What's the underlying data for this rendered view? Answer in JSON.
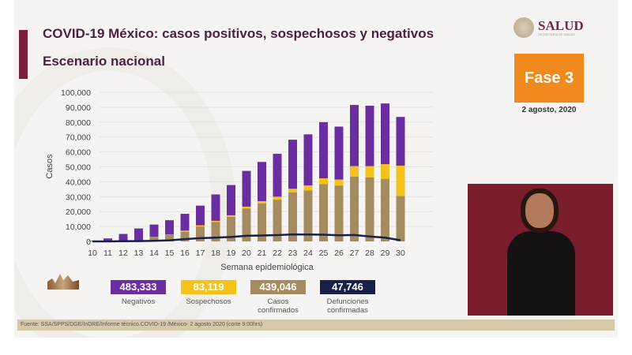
{
  "header": {
    "title": "COVID-19 México: casos positivos, sospechosos y negativos",
    "subtitle": "Escenario nacional"
  },
  "logo": {
    "name": "SALUD",
    "sub": "SECRETARÍA DE SALUD"
  },
  "phase": {
    "label": "Fase 3",
    "color": "#f08a1c"
  },
  "date": "2 agosto, 2020",
  "chart_data": {
    "type": "bar",
    "stacked": true,
    "xlabel": "Semana epidemiológica",
    "ylabel": "Casos",
    "ylim": [
      0,
      100000
    ],
    "yticks": [
      "0",
      "10,000",
      "20,000",
      "30,000",
      "40,000",
      "50,000",
      "60,000",
      "70,000",
      "80,000",
      "90,000",
      "100,000"
    ],
    "grid": true,
    "categories": [
      "10",
      "11",
      "12",
      "13",
      "14",
      "15",
      "16",
      "17",
      "18",
      "19",
      "20",
      "21",
      "22",
      "23",
      "24",
      "25",
      "26",
      "27",
      "28",
      "29",
      "30"
    ],
    "series": [
      {
        "key": "confirmados",
        "color": "#a48b60",
        "values": [
          0,
          100,
          300,
          800,
          3000,
          4500,
          6500,
          10000,
          13000,
          16500,
          22000,
          25500,
          28000,
          32800,
          34200,
          38500,
          37500,
          43500,
          43000,
          42000,
          30500
        ]
      },
      {
        "key": "sospechosos",
        "color": "#f5c21b",
        "values": [
          0,
          0,
          0,
          0,
          100,
          200,
          700,
          800,
          800,
          1000,
          1300,
          1500,
          2000,
          2500,
          3300,
          3800,
          4000,
          7000,
          7500,
          9800,
          20300
        ]
      },
      {
        "key": "negativos",
        "color": "#6a2ea0",
        "values": [
          300,
          1900,
          4700,
          7900,
          8200,
          9500,
          11300,
          13200,
          17700,
          20300,
          24000,
          26300,
          28800,
          32900,
          34300,
          37700,
          35500,
          41000,
          40500,
          40700,
          32700
        ]
      },
      {
        "key": "defunciones",
        "type": "line",
        "color": "#1a2148",
        "values": [
          0,
          0,
          100,
          200,
          400,
          700,
          1500,
          2200,
          2500,
          3000,
          3800,
          4000,
          4200,
          4700,
          4600,
          4500,
          4100,
          4300,
          3300,
          2500,
          800
        ]
      }
    ]
  },
  "legend": [
    {
      "value": "483,333",
      "label": "Negativos",
      "color": "#6a2ea0"
    },
    {
      "value": "83,119",
      "label": "Sospechosos",
      "color": "#f5c21b"
    },
    {
      "value": "439,046",
      "label": "Casos confirmados",
      "color": "#a48b60"
    },
    {
      "value": "47,746",
      "label": "Defunciones confirmadas",
      "color": "#1a2148"
    }
  ],
  "footer": "Fuente: SSA/SPPS/DGE/InDRE/Informe técnico.COVID-19 /México- 2 agosto 2020 (corte 9:00hrs)"
}
